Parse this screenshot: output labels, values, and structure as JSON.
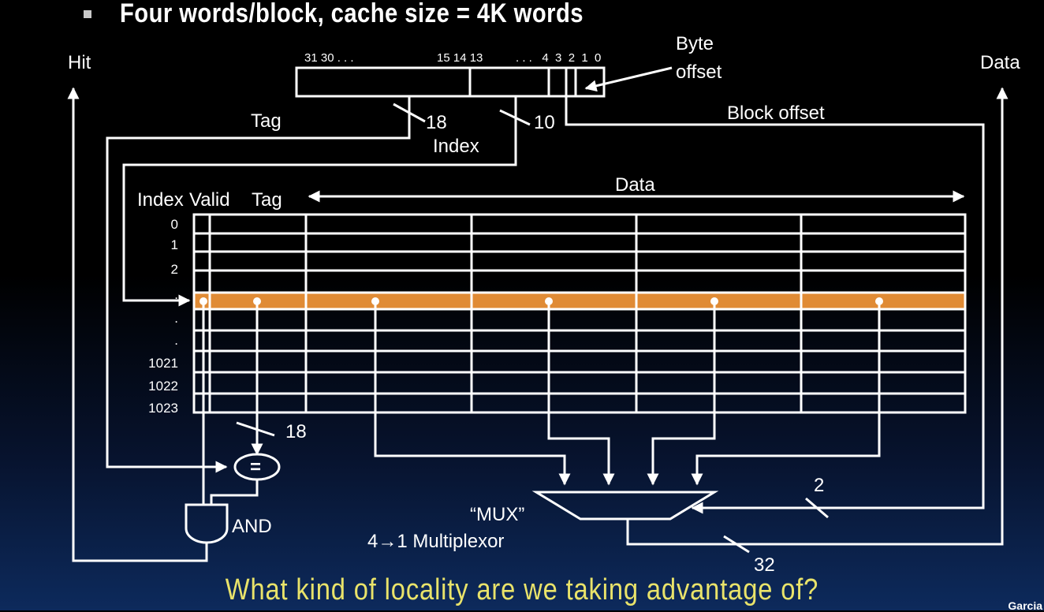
{
  "slide": {
    "title": "Four  words/block, cache size = 4K words",
    "question": "What kind of locality are we taking advantage of?",
    "footer_author": "Garcia"
  },
  "address": {
    "bit_labels_left": "31 30 . . .",
    "bit_labels_mid": "15 14 13",
    "bit_labels_right": ". . .   4  3  2  1  0",
    "byte_offset_line1": "Byte",
    "byte_offset_line2": "offset",
    "block_offset": "Block offset",
    "tag_label": "Tag",
    "tag_bits": "18",
    "index_bits": "10",
    "index_label": "Index"
  },
  "outputs": {
    "hit": "Hit",
    "data": "Data"
  },
  "table": {
    "col_index": "Index",
    "col_valid": "Valid",
    "col_tag": "Tag",
    "col_data": "Data",
    "rows": [
      "0",
      "1",
      "2",
      ".",
      ".",
      ".",
      "1021",
      "1022",
      "1023"
    ],
    "highlight_color": "#e08b35"
  },
  "logic": {
    "compare_bits": "18",
    "comparator": "=",
    "and_label": "AND",
    "mux_label": "“MUX”",
    "mux_desc": "4→1 Multiplexor",
    "select_bits": "2",
    "output_bits": "32"
  }
}
